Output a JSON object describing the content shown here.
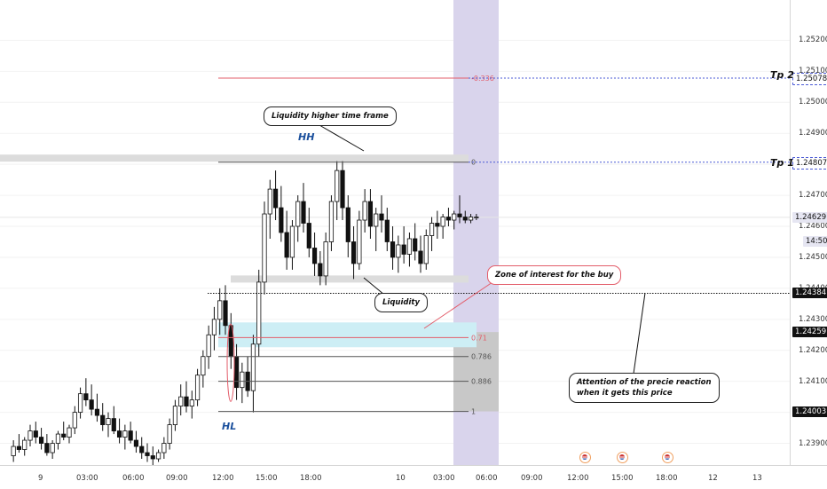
{
  "chart_data": {
    "type": "candlestick",
    "instrument_note": "",
    "y_ticks": [
      "1.25200",
      "1.25100",
      "1.25000",
      "1.24900",
      "1.24800",
      "1.24700",
      "1.24600",
      "1.24500",
      "1.24400",
      "1.24300",
      "1.24200",
      "1.24100",
      "1.24000",
      "1.23900"
    ],
    "y_tick_values": [
      1.252,
      1.251,
      1.25,
      1.249,
      1.248,
      1.247,
      1.246,
      1.245,
      1.244,
      1.243,
      1.242,
      1.241,
      1.24,
      1.239
    ],
    "ylim": [
      1.2383,
      1.2533
    ],
    "x_ticks": [
      "9",
      "03:00",
      "06:00",
      "09:00",
      "12:00",
      "15:00",
      "18:00",
      "10",
      "03:00",
      "06:00",
      "09:00",
      "12:00",
      "15:00",
      "18:00",
      "12",
      "13"
    ],
    "price_badges": [
      {
        "value": "1.25078",
        "style": "dotted"
      },
      {
        "value": "1.24807",
        "style": "dotted"
      },
      {
        "value": "1.24629",
        "style": "current"
      },
      {
        "value": "14:50",
        "style": "countdown"
      },
      {
        "value": "1.24384",
        "style": "dark"
      },
      {
        "value": "1.24259",
        "style": "dark"
      },
      {
        "value": "1.24003",
        "style": "dark"
      }
    ],
    "fib_levels": [
      {
        "label": "-0.336",
        "price": 1.25078,
        "color": "#e35d6a"
      },
      {
        "label": "0",
        "price": 1.24807,
        "color": "#555"
      },
      {
        "label": "0.71",
        "price": 1.24241,
        "color": "#e35d6a"
      },
      {
        "label": "0.786",
        "price": 1.2418,
        "color": "#555"
      },
      {
        "label": "0.886",
        "price": 1.241,
        "color": "#555"
      },
      {
        "label": "1",
        "price": 1.24003,
        "color": "#555"
      }
    ],
    "annotations": {
      "liquidity_htf": "Liquidity higher time frame",
      "liquidity": "Liquidity",
      "zone": "Zone of interest for the buy",
      "attention_line1": "Attention of the precie reaction",
      "attention_line2": "when it gets this price",
      "hh": "HH",
      "hl": "HL",
      "tp1": "Tp 1",
      "tp2": "Tp 2"
    },
    "candles": [
      [
        1.2386,
        1.2391,
        1.2384,
        1.2389
      ],
      [
        1.2389,
        1.2393,
        1.2387,
        1.2388
      ],
      [
        1.2388,
        1.2392,
        1.2386,
        1.2391
      ],
      [
        1.2391,
        1.2396,
        1.2389,
        1.2394
      ],
      [
        1.2394,
        1.2397,
        1.239,
        1.2392
      ],
      [
        1.2392,
        1.2395,
        1.2388,
        1.239
      ],
      [
        1.239,
        1.2393,
        1.2386,
        1.2387
      ],
      [
        1.2387,
        1.2391,
        1.2385,
        1.239
      ],
      [
        1.239,
        1.2394,
        1.2388,
        1.2393
      ],
      [
        1.2393,
        1.2397,
        1.2391,
        1.2392
      ],
      [
        1.2392,
        1.2396,
        1.239,
        1.2395
      ],
      [
        1.2395,
        1.2402,
        1.2393,
        1.24
      ],
      [
        1.24,
        1.2408,
        1.2398,
        1.2406
      ],
      [
        1.2406,
        1.2411,
        1.2402,
        1.2404
      ],
      [
        1.2404,
        1.2409,
        1.2399,
        1.2401
      ],
      [
        1.2401,
        1.2406,
        1.2397,
        1.2399
      ],
      [
        1.2399,
        1.2403,
        1.2394,
        1.2396
      ],
      [
        1.2396,
        1.24,
        1.2392,
        1.2398
      ],
      [
        1.2398,
        1.2402,
        1.2393,
        1.2394
      ],
      [
        1.2394,
        1.2398,
        1.239,
        1.2392
      ],
      [
        1.2392,
        1.2396,
        1.2388,
        1.2394
      ],
      [
        1.2394,
        1.2397,
        1.239,
        1.2391
      ],
      [
        1.2391,
        1.2394,
        1.2387,
        1.2389
      ],
      [
        1.2389,
        1.2392,
        1.2385,
        1.2387
      ],
      [
        1.2387,
        1.239,
        1.2384,
        1.2386
      ],
      [
        1.2386,
        1.2389,
        1.2383,
        1.2385
      ],
      [
        1.2385,
        1.2388,
        1.2384,
        1.2387
      ],
      [
        1.2387,
        1.2392,
        1.2385,
        1.239
      ],
      [
        1.239,
        1.2398,
        1.2388,
        1.2396
      ],
      [
        1.2396,
        1.2404,
        1.2394,
        1.2402
      ],
      [
        1.2402,
        1.2409,
        1.2399,
        1.2405
      ],
      [
        1.2405,
        1.241,
        1.24,
        1.2402
      ],
      [
        1.2402,
        1.2407,
        1.2398,
        1.2404
      ],
      [
        1.2404,
        1.2414,
        1.2402,
        1.2412
      ],
      [
        1.2412,
        1.242,
        1.2408,
        1.2418
      ],
      [
        1.2418,
        1.2428,
        1.2414,
        1.2425
      ],
      [
        1.2425,
        1.2434,
        1.242,
        1.243
      ],
      [
        1.243,
        1.244,
        1.2425,
        1.2436
      ],
      [
        1.2436,
        1.2441,
        1.2425,
        1.2428
      ],
      [
        1.2428,
        1.2432,
        1.2414,
        1.2418
      ],
      [
        1.2418,
        1.2422,
        1.2404,
        1.2408
      ],
      [
        1.2408,
        1.2416,
        1.2403,
        1.2413
      ],
      [
        1.2413,
        1.2418,
        1.2405,
        1.2407
      ],
      [
        1.2407,
        1.2425,
        1.24,
        1.2422
      ],
      [
        1.2422,
        1.2446,
        1.2418,
        1.2442
      ],
      [
        1.2442,
        1.2468,
        1.2438,
        1.2464
      ],
      [
        1.2464,
        1.2475,
        1.2456,
        1.2472
      ],
      [
        1.2472,
        1.2478,
        1.2462,
        1.2466
      ],
      [
        1.2466,
        1.2473,
        1.2455,
        1.2458
      ],
      [
        1.2458,
        1.2465,
        1.2446,
        1.245
      ],
      [
        1.245,
        1.2462,
        1.2446,
        1.246
      ],
      [
        1.246,
        1.247,
        1.2455,
        1.2468
      ],
      [
        1.2468,
        1.2474,
        1.2458,
        1.2461
      ],
      [
        1.2461,
        1.2466,
        1.245,
        1.2453
      ],
      [
        1.2453,
        1.2458,
        1.2444,
        1.2448
      ],
      [
        1.2448,
        1.2452,
        1.2441,
        1.2444
      ],
      [
        1.2444,
        1.2458,
        1.2441,
        1.2455
      ],
      [
        1.2455,
        1.247,
        1.2452,
        1.2468
      ],
      [
        1.2468,
        1.2481,
        1.2462,
        1.2478
      ],
      [
        1.2478,
        1.2481,
        1.2462,
        1.2466
      ],
      [
        1.2466,
        1.247,
        1.245,
        1.2455
      ],
      [
        1.2455,
        1.246,
        1.2443,
        1.2448
      ],
      [
        1.2448,
        1.2465,
        1.2446,
        1.2462
      ],
      [
        1.2462,
        1.2472,
        1.2458,
        1.2468
      ],
      [
        1.2468,
        1.2472,
        1.2456,
        1.246
      ],
      [
        1.246,
        1.2466,
        1.2452,
        1.2464
      ],
      [
        1.2464,
        1.247,
        1.2458,
        1.2462
      ],
      [
        1.2462,
        1.2466,
        1.2452,
        1.2455
      ],
      [
        1.2455,
        1.246,
        1.2446,
        1.245
      ],
      [
        1.245,
        1.2457,
        1.2445,
        1.2454
      ],
      [
        1.2454,
        1.246,
        1.2448,
        1.2451
      ],
      [
        1.2451,
        1.2458,
        1.2447,
        1.2456
      ],
      [
        1.2456,
        1.2461,
        1.2449,
        1.2452
      ],
      [
        1.2452,
        1.2457,
        1.2445,
        1.2448
      ],
      [
        1.2448,
        1.2459,
        1.2446,
        1.2457
      ],
      [
        1.2457,
        1.2463,
        1.2452,
        1.2461
      ],
      [
        1.2461,
        1.2465,
        1.2456,
        1.246
      ],
      [
        1.246,
        1.2464,
        1.2456,
        1.2463
      ],
      [
        1.2463,
        1.2466,
        1.246,
        1.2462
      ],
      [
        1.2462,
        1.2465,
        1.2459,
        1.2464
      ],
      [
        1.2464,
        1.247,
        1.2461,
        1.2463
      ],
      [
        1.2463,
        1.2465,
        1.2461,
        1.2462
      ],
      [
        1.2462,
        1.2464,
        1.2461,
        1.2463
      ],
      [
        1.2463,
        1.2464,
        1.2462,
        1.2463
      ]
    ]
  }
}
